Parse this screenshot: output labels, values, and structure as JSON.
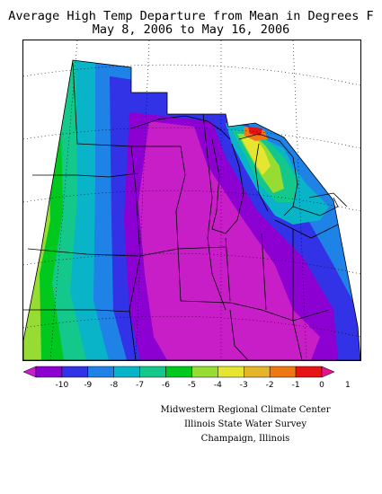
{
  "title": {
    "line1": "Average High Temp Departure from Mean in Degrees F",
    "line2": "May 8, 2006 to May 16, 2006"
  },
  "legend": {
    "colors": [
      "#c81ec8",
      "#8c00d2",
      "#3232e6",
      "#1e82e6",
      "#0ab4c8",
      "#14c88c",
      "#00c81e",
      "#96dc32",
      "#e6e632",
      "#e6b428",
      "#f07814",
      "#e61414",
      "#e6148c"
    ],
    "ticks": [
      "-10",
      "-9",
      "-8",
      "-7",
      "-6",
      "-5",
      "-4",
      "-3",
      "-2",
      "-1",
      "0",
      "1"
    ]
  },
  "credits": {
    "line1": "Midwestern Regional Climate Center",
    "line2": "Illinois State Water Survey",
    "line3": "Champaign, Illinois"
  }
}
